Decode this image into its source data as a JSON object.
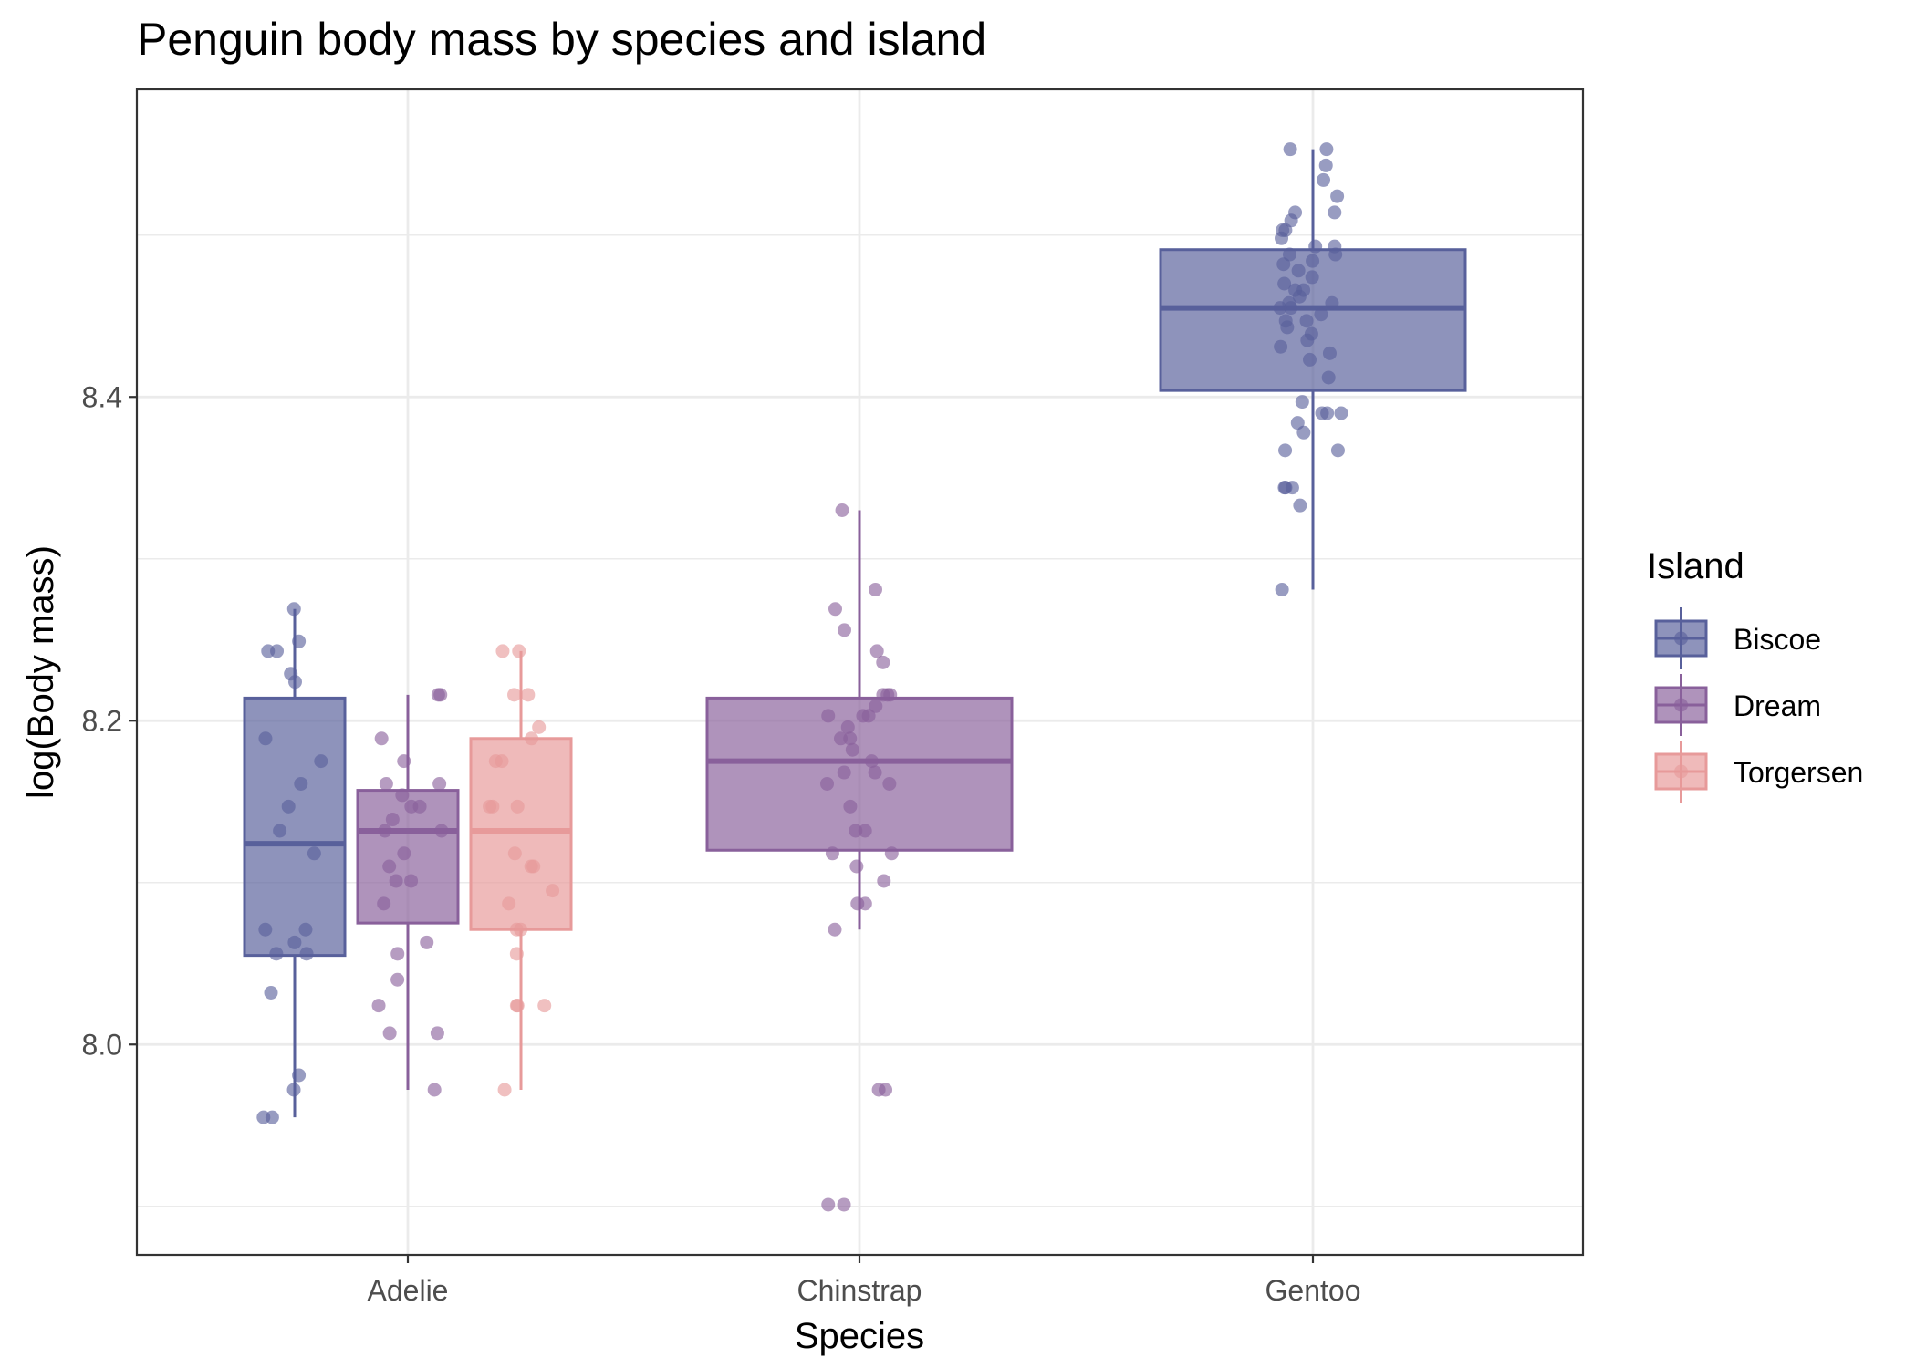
{
  "chart_data": {
    "type": "boxplot",
    "title": "Penguin body mass by species and island",
    "xlabel": "Species",
    "ylabel": "log(Body mass)",
    "categories": [
      "Adelie",
      "Chinstrap",
      "Gentoo"
    ],
    "ylim": [
      7.87,
      8.59
    ],
    "yticks": [
      8.0,
      8.2,
      8.4
    ],
    "ytick_labels": [
      "8.0",
      "8.2",
      "8.4"
    ],
    "grid": true,
    "legend": {
      "title": "Island",
      "placement": "right",
      "entries": [
        "Biscoe",
        "Dream",
        "Torgersen"
      ]
    },
    "colors": {
      "Biscoe": "#58609b",
      "Dream": "#89609b",
      "Torgersen": "#e79a9a"
    },
    "boxes": [
      {
        "category": "Adelie",
        "island": "Biscoe",
        "min": 7.955,
        "q1": 8.055,
        "median": 8.124,
        "q3": 8.214,
        "max": 8.269
      },
      {
        "category": "Adelie",
        "island": "Dream",
        "min": 7.972,
        "q1": 8.075,
        "median": 8.132,
        "q3": 8.157,
        "max": 8.216
      },
      {
        "category": "Adelie",
        "island": "Torgersen",
        "min": 7.972,
        "q1": 8.071,
        "median": 8.132,
        "q3": 8.189,
        "max": 8.243
      },
      {
        "category": "Chinstrap",
        "island": "Dream",
        "min": 8.071,
        "q1": 8.12,
        "median": 8.175,
        "q3": 8.214,
        "max": 8.33
      },
      {
        "category": "Gentoo",
        "island": "Biscoe",
        "min": 8.281,
        "q1": 8.404,
        "median": 8.455,
        "q3": 8.491,
        "max": 8.553
      }
    ],
    "points": [
      {
        "category": "Adelie",
        "island": "Biscoe",
        "y": [
          8.269,
          8.249,
          8.243,
          8.243,
          8.229,
          8.224,
          8.189,
          8.175,
          8.161,
          8.147,
          8.132,
          8.118,
          8.071,
          8.071,
          8.063,
          8.056,
          8.056,
          8.032,
          7.981,
          7.972,
          7.955,
          7.955
        ]
      },
      {
        "category": "Adelie",
        "island": "Dream",
        "y": [
          8.216,
          8.216,
          8.189,
          8.175,
          8.161,
          8.161,
          8.154,
          8.147,
          8.147,
          8.139,
          8.132,
          8.132,
          8.118,
          8.11,
          8.101,
          8.101,
          8.087,
          8.063,
          8.056,
          8.04,
          8.024,
          8.007,
          8.007,
          7.972
        ]
      },
      {
        "category": "Adelie",
        "island": "Torgersen",
        "y": [
          8.243,
          8.243,
          8.216,
          8.216,
          8.196,
          8.189,
          8.175,
          8.175,
          8.147,
          8.147,
          8.147,
          8.118,
          8.11,
          8.11,
          8.095,
          8.087,
          8.071,
          8.071,
          8.056,
          8.024,
          8.024,
          8.024,
          7.972
        ]
      },
      {
        "category": "Chinstrap",
        "island": "Dream",
        "y": [
          8.33,
          8.281,
          8.269,
          8.256,
          8.243,
          8.236,
          8.216,
          8.216,
          8.216,
          8.209,
          8.203,
          8.203,
          8.203,
          8.196,
          8.189,
          8.189,
          8.182,
          8.175,
          8.168,
          8.168,
          8.161,
          8.161,
          8.147,
          8.132,
          8.132,
          8.118,
          8.118,
          8.11,
          8.101,
          8.087,
          8.087,
          8.071,
          7.972,
          7.972,
          7.901,
          7.901
        ]
      },
      {
        "category": "Gentoo",
        "island": "Biscoe",
        "y": [
          8.553,
          8.553,
          8.543,
          8.534,
          8.524,
          8.514,
          8.514,
          8.509,
          8.503,
          8.503,
          8.498,
          8.493,
          8.493,
          8.488,
          8.488,
          8.484,
          8.482,
          8.478,
          8.474,
          8.47,
          8.466,
          8.466,
          8.462,
          8.458,
          8.458,
          8.455,
          8.455,
          8.451,
          8.447,
          8.447,
          8.443,
          8.439,
          8.435,
          8.431,
          8.427,
          8.423,
          8.412,
          8.397,
          8.39,
          8.39,
          8.39,
          8.384,
          8.378,
          8.367,
          8.367,
          8.344,
          8.344,
          8.344,
          8.333,
          8.281
        ]
      }
    ]
  }
}
